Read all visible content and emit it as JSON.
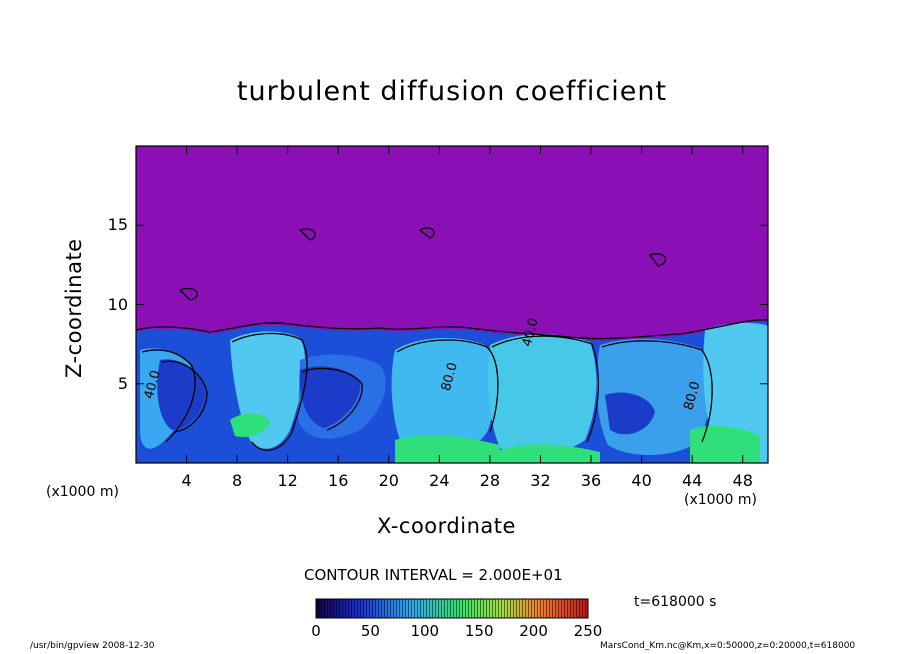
{
  "chart_data": {
    "type": "heatmap",
    "title": "turbulent diffusion coefficient",
    "xlabel": "X-coordinate",
    "ylabel": "Z-coordinate",
    "x_unit_label": "(x1000 m)",
    "xlim": [
      0,
      50
    ],
    "ylim": [
      0,
      20
    ],
    "x_ticks": [
      "4",
      "8",
      "12",
      "16",
      "20",
      "24",
      "28",
      "32",
      "36",
      "40",
      "44",
      "48"
    ],
    "y_ticks": [
      "5",
      "10",
      "15"
    ],
    "contour_labels": [
      {
        "text": "40.0",
        "x": 1.3,
        "z": 4.0
      },
      {
        "text": "80.0",
        "x": 24.8,
        "z": 4.5
      },
      {
        "text": "40.0",
        "x": 31.2,
        "z": 7.3
      },
      {
        "text": "80.0",
        "x": 44.0,
        "z": 3.3
      }
    ],
    "contour_interval": "CONTOUR INTERVAL = 2.000E+01",
    "colorbar": {
      "ticks": [
        "0",
        "50",
        "100",
        "150",
        "200",
        "250"
      ],
      "range": [
        0,
        250
      ]
    },
    "time_label": "t=618000  s",
    "grid": false,
    "colors": {
      "background": "#8a10b5",
      "low": "#1538c8",
      "mid": "#3aa8f0",
      "high": "#2fe07a"
    }
  },
  "footer": {
    "left": "/usr/bin/gpview   2008-12-30",
    "right": "MarsCond_Km.nc@Km,x=0:50000,z=0:20000,t=618000"
  }
}
